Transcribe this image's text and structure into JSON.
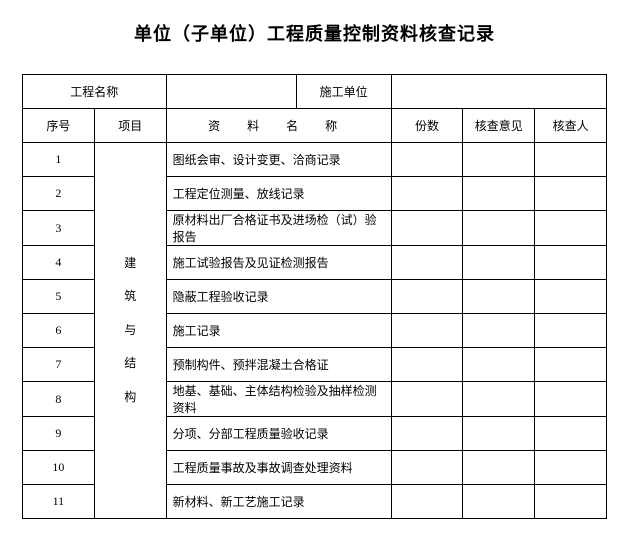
{
  "title": "单位（子单位）工程质量控制资料核查记录",
  "header": {
    "project_name_label": "工程名称",
    "construction_unit_label": "施工单位"
  },
  "columns": {
    "seq": "序号",
    "project": "项目",
    "material_name": "资 料 名 称",
    "copies": "份数",
    "opinion": "核查意见",
    "checker": "核查人"
  },
  "category_label": "建\n\n筑\n\n与\n\n结\n\n构",
  "rows": [
    {
      "seq": "1",
      "name": "图纸会审、设计变更、洽商记录"
    },
    {
      "seq": "2",
      "name": "工程定位测量、放线记录"
    },
    {
      "seq": "3",
      "name": "原材料出厂合格证书及进场检（试）验报告"
    },
    {
      "seq": "4",
      "name": "施工试验报告及见证检测报告"
    },
    {
      "seq": "5",
      "name": "隐蔽工程验收记录"
    },
    {
      "seq": "6",
      "name": "施工记录"
    },
    {
      "seq": "7",
      "name": "预制构件、预拌混凝土合格证"
    },
    {
      "seq": "8",
      "name": "地基、基础、主体结构检验及抽样检测资料"
    },
    {
      "seq": "9",
      "name": "分项、分部工程质量验收记录"
    },
    {
      "seq": "10",
      "name": "工程质量事故及事故调查处理资料"
    },
    {
      "seq": "11",
      "name": "新材料、新工艺施工记录"
    }
  ]
}
